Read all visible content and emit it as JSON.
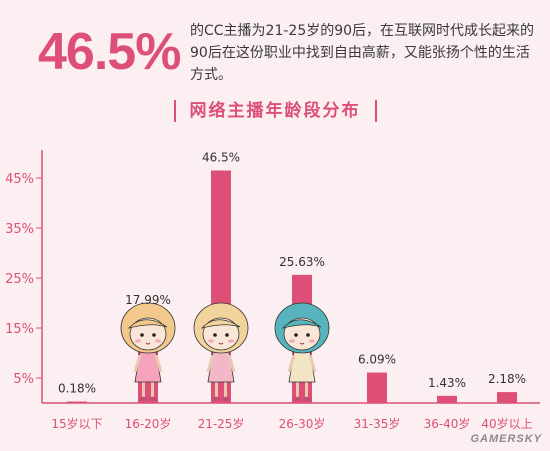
{
  "header": {
    "big_percent": "46.5%",
    "description": "的CC主播为21-25岁的90后，在互联网时代成长起来的90后在这份职业中找到自由高薪，又能张扬个性的生活方式。"
  },
  "watermark": "GAMERSKY",
  "chart_data": {
    "type": "bar",
    "title": "网络主播年龄段分布",
    "xlabel": "",
    "ylabel": "",
    "categories": [
      "15岁以下",
      "16-20岁",
      "21-25岁",
      "26-30岁",
      "31-35岁",
      "36-40岁",
      "40岁以上"
    ],
    "values": [
      0.18,
      17.99,
      46.5,
      25.63,
      6.09,
      1.43,
      2.18
    ],
    "value_labels": [
      "0.18%",
      "17.99%",
      "46.5%",
      "25.63%",
      "6.09%",
      "1.43%",
      "2.18%"
    ],
    "y_ticks": [
      "5%",
      "15%",
      "25%",
      "35%",
      "45%"
    ],
    "y_tick_values": [
      5,
      15,
      25,
      35,
      45
    ],
    "ylim": [
      0,
      50
    ],
    "grid": false,
    "bar_color": "#dd4f77"
  }
}
